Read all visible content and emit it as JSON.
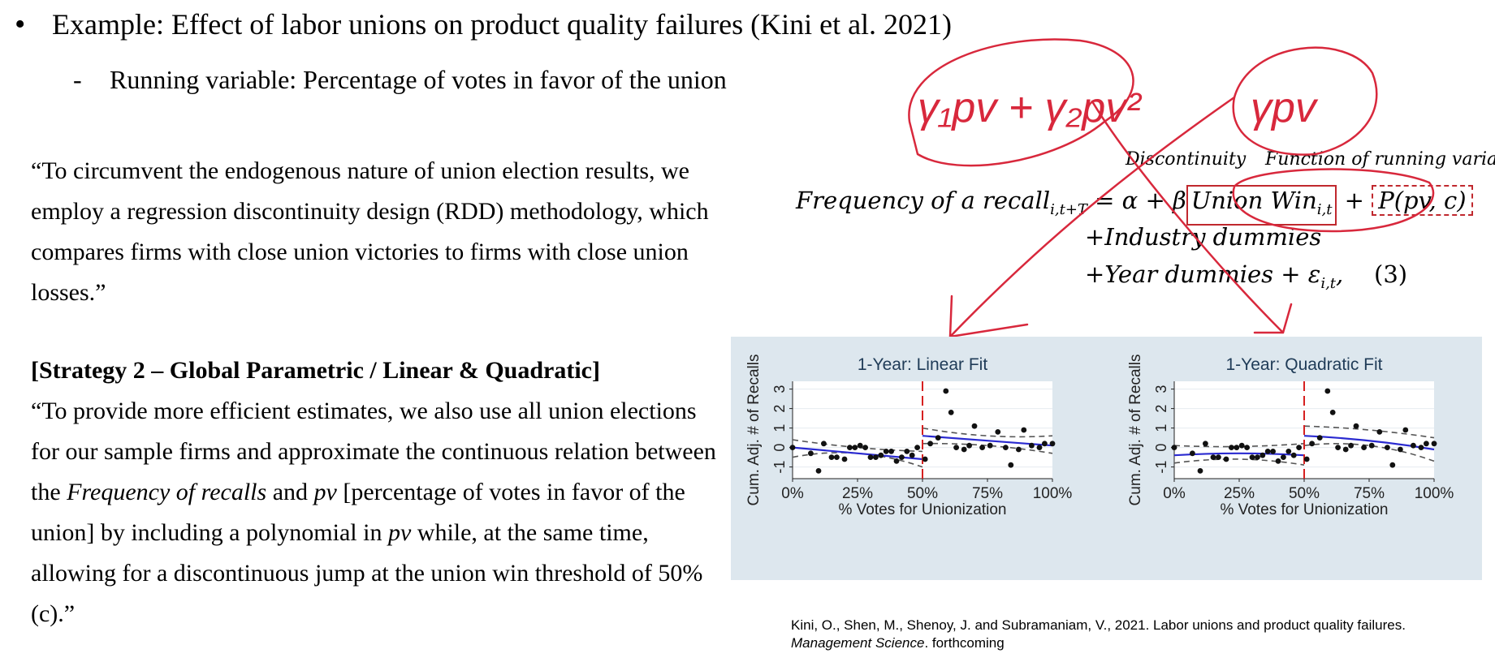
{
  "slide": {
    "bullet": "•",
    "title": "Example: Effect of labor unions on product quality failures (Kini et al. 2021)",
    "sub_dash": "-",
    "sub_bullet": "Running variable: Percentage of votes in favor of the union",
    "quote1": "“To circumvent the endogenous nature of union election results, we employ a regression discontinuity design (RDD) methodology, which compares firms with close union victories to firms with close union losses.”",
    "strategy": "[Strategy 2 – Global Parametric / Linear & Quadratic]",
    "quote2_a": "“To provide more efficient estimates, we also use all union elections for our sample firms and approximate the continuous relation between the ",
    "quote2_i1": "Frequency of recalls",
    "quote2_b": " and ",
    "quote2_i2": "pv",
    "quote2_c": " [percentage of votes in favor of the union] by including a polynomial in ",
    "quote2_i3": "pv",
    "quote2_d": " while, at the same time, allowing for a discontinuous jump at the union win threshold of 50% (c).”"
  },
  "equation": {
    "label_disc": "Discontinuity",
    "label_func": "Function of running variable",
    "lhs": "Frequency of a recall",
    "lhs_sub": "i,t+T",
    "op1": " = α + β",
    "box1": "Union Win",
    "box1_sub": "i,t",
    "op2": " + ",
    "box2": "P(pv,  c)",
    "line2": "+Industry dummies",
    "line3_a": "+Year dummies + ε",
    "line3_sub": "i,t",
    "line3_b": ",",
    "number": "(3)"
  },
  "annotations": {
    "left": "γ₁pv + γ₂pv²",
    "right": "γpv"
  },
  "citation": {
    "line1": "Kini, O., Shen, M., Shenoy, J. and Subramaniam, V., 2021. Labor unions and product quality failures.",
    "journal": "Management Science",
    "rest": ". forthcoming"
  },
  "colors": {
    "fit": "#2a2ad0",
    "cutoff": "#d62020",
    "ci": "#555555",
    "panel_bg": "#dde7ee",
    "ink": "#d8283c",
    "box": "#c0282e"
  },
  "chart_data": [
    {
      "type": "scatter",
      "title": "1-Year: Linear Fit",
      "xlabel": "% Votes for Unionization",
      "ylabel": "Cum. Adj. # of Recalls",
      "xticks": [
        "0%",
        "25%",
        "50%",
        "75%",
        "100%"
      ],
      "yticks": [
        "-1",
        "0",
        "1",
        "2",
        "3"
      ],
      "xlim": [
        0,
        100
      ],
      "ylim": [
        -1.6,
        3.4
      ],
      "cutoff": 50,
      "points": [
        [
          0,
          0
        ],
        [
          7,
          -0.3
        ],
        [
          10,
          -1.2
        ],
        [
          12,
          0.2
        ],
        [
          15,
          -0.5
        ],
        [
          17,
          -0.5
        ],
        [
          20,
          -0.6
        ],
        [
          22,
          0
        ],
        [
          24,
          0
        ],
        [
          26,
          0.1
        ],
        [
          28,
          0
        ],
        [
          30,
          -0.5
        ],
        [
          32,
          -0.5
        ],
        [
          34,
          -0.4
        ],
        [
          36,
          -0.2
        ],
        [
          38,
          -0.2
        ],
        [
          40,
          -0.7
        ],
        [
          42,
          -0.5
        ],
        [
          44,
          -0.2
        ],
        [
          46,
          -0.4
        ],
        [
          48,
          0
        ],
        [
          51,
          -0.6
        ],
        [
          53,
          0.2
        ],
        [
          56,
          0.5
        ],
        [
          59,
          2.9
        ],
        [
          61,
          1.8
        ],
        [
          63,
          0
        ],
        [
          66,
          -0.1
        ],
        [
          68,
          0.1
        ],
        [
          70,
          1.1
        ],
        [
          73,
          0
        ],
        [
          76,
          0.1
        ],
        [
          79,
          0.8
        ],
        [
          82,
          0
        ],
        [
          84,
          -0.9
        ],
        [
          87,
          -0.1
        ],
        [
          89,
          0.9
        ],
        [
          92,
          0.1
        ],
        [
          95,
          0
        ],
        [
          97,
          0.2
        ],
        [
          100,
          0.2
        ]
      ],
      "fit_left": [
        [
          0,
          0
        ],
        [
          50,
          -0.6
        ]
      ],
      "fit_right": [
        [
          50,
          0.6
        ],
        [
          100,
          0.1
        ]
      ],
      "ci_left_upper": [
        [
          0,
          0.4
        ],
        [
          25,
          0
        ],
        [
          50,
          -0.2
        ]
      ],
      "ci_left_lower": [
        [
          0,
          -0.5
        ],
        [
          25,
          -0.3
        ],
        [
          50,
          -1.0
        ]
      ],
      "ci_right_upper": [
        [
          50,
          1.0
        ],
        [
          75,
          0.6
        ],
        [
          100,
          0.6
        ]
      ],
      "ci_right_lower": [
        [
          50,
          0.2
        ],
        [
          75,
          0.1
        ],
        [
          100,
          -0.3
        ]
      ]
    },
    {
      "type": "scatter",
      "title": "1-Year: Quadratic Fit",
      "xlabel": "% Votes for Unionization",
      "ylabel": "Cum. Adj. # of Recalls",
      "xticks": [
        "0%",
        "25%",
        "50%",
        "75%",
        "100%"
      ],
      "yticks": [
        "-1",
        "0",
        "1",
        "2",
        "3"
      ],
      "xlim": [
        0,
        100
      ],
      "ylim": [
        -1.6,
        3.4
      ],
      "cutoff": 50,
      "points": [
        [
          0,
          0
        ],
        [
          7,
          -0.3
        ],
        [
          10,
          -1.2
        ],
        [
          12,
          0.2
        ],
        [
          15,
          -0.5
        ],
        [
          17,
          -0.5
        ],
        [
          20,
          -0.6
        ],
        [
          22,
          0
        ],
        [
          24,
          0
        ],
        [
          26,
          0.1
        ],
        [
          28,
          0
        ],
        [
          30,
          -0.5
        ],
        [
          32,
          -0.5
        ],
        [
          34,
          -0.4
        ],
        [
          36,
          -0.2
        ],
        [
          38,
          -0.2
        ],
        [
          40,
          -0.7
        ],
        [
          42,
          -0.5
        ],
        [
          44,
          -0.2
        ],
        [
          46,
          -0.4
        ],
        [
          48,
          0
        ],
        [
          51,
          -0.6
        ],
        [
          53,
          0.2
        ],
        [
          56,
          0.5
        ],
        [
          59,
          2.9
        ],
        [
          61,
          1.8
        ],
        [
          63,
          0
        ],
        [
          66,
          -0.1
        ],
        [
          68,
          0.1
        ],
        [
          70,
          1.1
        ],
        [
          73,
          0
        ],
        [
          76,
          0.1
        ],
        [
          79,
          0.8
        ],
        [
          82,
          0
        ],
        [
          84,
          -0.9
        ],
        [
          87,
          -0.1
        ],
        [
          89,
          0.9
        ],
        [
          92,
          0.1
        ],
        [
          95,
          0
        ],
        [
          97,
          0.2
        ],
        [
          100,
          0.2
        ]
      ],
      "fit_left": [
        [
          0,
          -0.4
        ],
        [
          25,
          -0.3
        ],
        [
          50,
          -0.4
        ]
      ],
      "fit_right": [
        [
          50,
          0.6
        ],
        [
          75,
          0.35
        ],
        [
          100,
          -0.1
        ]
      ],
      "ci_left_upper": [
        [
          0,
          0.1
        ],
        [
          25,
          0.05
        ],
        [
          50,
          0.2
        ]
      ],
      "ci_left_lower": [
        [
          0,
          -0.8
        ],
        [
          25,
          -0.6
        ],
        [
          50,
          -0.9
        ]
      ],
      "ci_right_upper": [
        [
          50,
          1.1
        ],
        [
          75,
          0.9
        ],
        [
          100,
          0.5
        ]
      ],
      "ci_right_lower": [
        [
          50,
          0.1
        ],
        [
          75,
          0.1
        ],
        [
          100,
          -0.7
        ]
      ]
    }
  ]
}
